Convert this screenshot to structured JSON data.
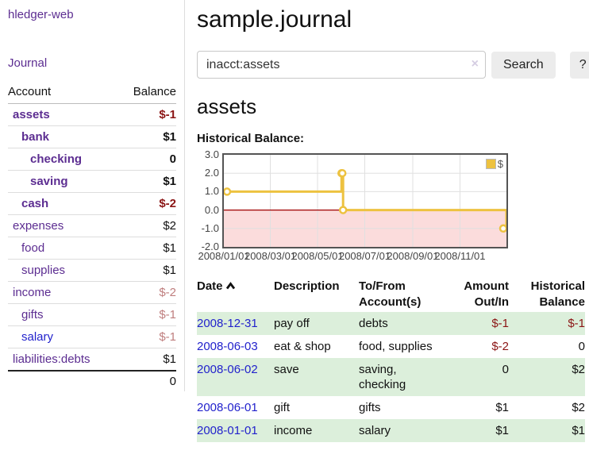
{
  "app": {
    "title": "hledger-web"
  },
  "sidebar": {
    "journal_link": "Journal",
    "table": {
      "headers": {
        "account": "Account",
        "balance": "Balance"
      },
      "rows": [
        {
          "account": "assets",
          "balance": "$-1",
          "indent": 0,
          "bold": true,
          "link_color": "purple"
        },
        {
          "account": "bank",
          "balance": "$1",
          "indent": 1,
          "bold": true,
          "link_color": "purple"
        },
        {
          "account": "checking",
          "balance": "0",
          "indent": 2,
          "bold": true,
          "link_color": "purple"
        },
        {
          "account": "saving",
          "balance": "$1",
          "indent": 2,
          "bold": true,
          "link_color": "purple"
        },
        {
          "account": "cash",
          "balance": "$-2",
          "indent": 1,
          "bold": true,
          "link_color": "purple"
        },
        {
          "account": "expenses",
          "balance": "$2",
          "indent": 0,
          "bold": false,
          "link_color": "purple"
        },
        {
          "account": "food",
          "balance": "$1",
          "indent": 1,
          "bold": false,
          "link_color": "purple"
        },
        {
          "account": "supplies",
          "balance": "$1",
          "indent": 1,
          "bold": false,
          "link_color": "purple"
        },
        {
          "account": "income",
          "balance": "$-2",
          "indent": 0,
          "bold": false,
          "link_color": "purple"
        },
        {
          "account": "gifts",
          "balance": "$-1",
          "indent": 1,
          "bold": false,
          "link_color": "purple"
        },
        {
          "account": "salary",
          "balance": "$-1",
          "indent": 1,
          "bold": false,
          "link_color": "blue"
        },
        {
          "account": "liabilities:debts",
          "balance": "$1",
          "indent": 0,
          "bold": false,
          "link_color": "purple"
        }
      ],
      "total": "0"
    }
  },
  "header": {
    "title": "sample.journal"
  },
  "search": {
    "value": "inacct:assets",
    "clear_icon": "×",
    "button": "Search",
    "help_button": "?"
  },
  "account_page": {
    "heading": "assets",
    "chart_label": "Historical Balance:"
  },
  "chart_data": {
    "type": "line",
    "style": "step-after",
    "title": "Historical Balance:",
    "series": [
      {
        "name": "$",
        "color": "#edc240",
        "points": [
          {
            "x": "2008-01-01",
            "y": 1
          },
          {
            "x": "2008-06-01",
            "y": 2
          },
          {
            "x": "2008-06-02",
            "y": 2
          },
          {
            "x": "2008-06-03",
            "y": 0
          },
          {
            "x": "2008-12-31",
            "y": -1
          }
        ]
      }
    ],
    "xlim": [
      "2008-01-01",
      "2008-12-31"
    ],
    "ylim": [
      -2,
      3
    ],
    "y_ticks": [
      "3.0",
      "2.0",
      "1.0",
      "0.0",
      "-1.0",
      "-2.0"
    ],
    "x_ticks": [
      "2008/01/01",
      "2008/03/01",
      "2008/05/01",
      "2008/07/01",
      "2008/09/01",
      "2008/11/01"
    ],
    "grid": true,
    "legend": {
      "label": "$",
      "position": "top-right"
    },
    "negative_region": {
      "from": 0,
      "to": -2,
      "color": "#fbdcdc"
    },
    "zero_line_color": "#a00000"
  },
  "register_table": {
    "headers": {
      "date": "Date",
      "description": "Description",
      "accounts": "To/From Account(s)",
      "amount": "Amount Out/In",
      "balance": "Historical Balance"
    },
    "rows": [
      {
        "date": "2008-12-31",
        "description": "pay off",
        "accounts": "debts",
        "amount": "$-1",
        "balance": "$-1"
      },
      {
        "date": "2008-06-03",
        "description": "eat & shop",
        "accounts": "food, supplies",
        "amount": "$-2",
        "balance": "0"
      },
      {
        "date": "2008-06-02",
        "description": "save",
        "accounts": "saving, checking",
        "amount": "0",
        "balance": "$2"
      },
      {
        "date": "2008-06-01",
        "description": "gift",
        "accounts": "gifts",
        "amount": "$1",
        "balance": "$2"
      },
      {
        "date": "2008-01-01",
        "description": "income",
        "accounts": "salary",
        "amount": "$1",
        "balance": "$1"
      }
    ]
  },
  "colors": {
    "accent_purple": "#5c2d91",
    "link_blue": "#2222cc",
    "negative_strong": "#8b1515",
    "negative_faded": "#bf7e7e",
    "row_stripe_green": "#dcefdb",
    "chart_line_gold": "#edc240",
    "chart_fill_pink": "#fbdcdc",
    "zero_line_red": "#a00000",
    "button_bg": "#ececec"
  }
}
